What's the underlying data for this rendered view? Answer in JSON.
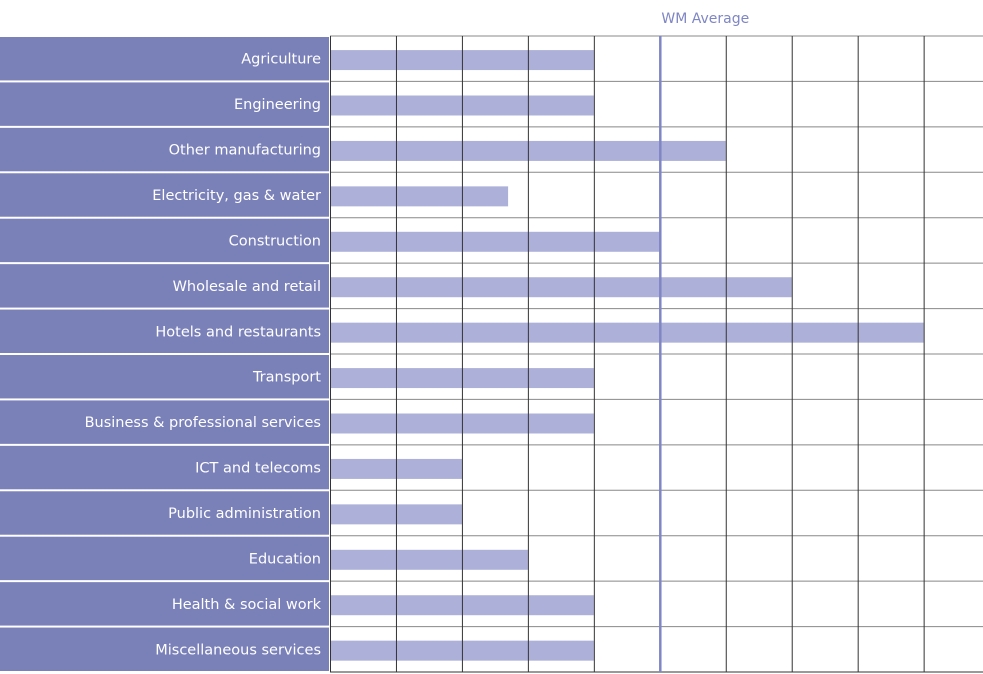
{
  "chart_data": {
    "type": "bar",
    "orientation": "horizontal",
    "categories": [
      "Agriculture",
      "Engineering",
      "Other manufacturing",
      "Electricity, gas & water",
      "Construction",
      "Wholesale and retail",
      "Hotels and restaurants",
      "Transport",
      "Business & professional services",
      "ICT and telecoms",
      "Public administration",
      "Education",
      "Health & social work",
      "Miscellaneous services"
    ],
    "values": [
      4,
      4,
      6,
      2.7,
      5,
      7,
      9,
      4,
      4,
      2,
      2,
      3,
      4,
      4
    ],
    "color": "#adb0d8",
    "xlim": [
      0,
      9.9
    ],
    "xticks": [
      0,
      1,
      2,
      3,
      4,
      5,
      6,
      7,
      8,
      9
    ],
    "grid": true,
    "reference_line": {
      "label": "WM Average",
      "value": 5,
      "color": "#7f86c4"
    }
  }
}
